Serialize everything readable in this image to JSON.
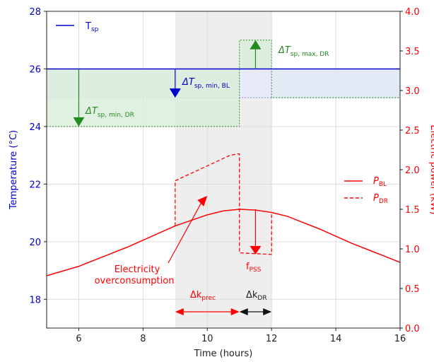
{
  "chart_data": {
    "type": "line",
    "xlabel": "Time (hours)",
    "ylabel_left": "Temperature (°C)",
    "ylabel_right": "Electric power (kW)",
    "xlim": [
      5,
      16
    ],
    "ylim_left": [
      17,
      28
    ],
    "ylim_right": [
      0.0,
      4.0
    ],
    "x_ticks": [
      "6",
      "8",
      "10",
      "12",
      "14",
      "16"
    ],
    "x_tick_values": [
      6,
      8,
      10,
      12,
      14,
      16
    ],
    "y_left_ticks": [
      "18",
      "20",
      "22",
      "24",
      "26",
      "28"
    ],
    "y_left_tick_values": [
      18,
      20,
      22,
      24,
      26,
      28
    ],
    "y_right_ticks": [
      "0.0",
      "0.5",
      "1.0",
      "1.5",
      "2.0",
      "2.5",
      "3.0",
      "3.5",
      "4.0"
    ],
    "y_right_tick_values": [
      0.0,
      0.5,
      1.0,
      1.5,
      2.0,
      2.5,
      3.0,
      3.5,
      4.0
    ],
    "grid": true,
    "colors": {
      "temperature": "#0000cc",
      "dr_band": "#228b22",
      "power": "#ff0000",
      "shade": "#eeeeee"
    },
    "shaded_region_x": [
      9,
      12
    ],
    "setpoint": {
      "label": "T",
      "label_sub": "sp",
      "value": 26,
      "x": [
        5,
        16
      ]
    },
    "band_bl": {
      "low": 25,
      "high": 26,
      "x": [
        5,
        16
      ]
    },
    "dr_profile": {
      "x": [
        5,
        11,
        11,
        11.5,
        11.5,
        12,
        12,
        16
      ],
      "y": [
        24,
        24,
        27,
        27,
        27,
        27,
        25,
        25
      ]
    },
    "power_baseline": {
      "name": "P",
      "name_sub": "BL",
      "x": [
        5,
        5.5,
        6,
        6.5,
        7,
        7.5,
        8,
        8.5,
        9,
        9.5,
        10,
        10.5,
        11,
        11.5,
        12,
        12.5,
        13,
        13.5,
        14,
        14.5,
        15,
        15.5,
        16
      ],
      "y": [
        0.66,
        0.72,
        0.78,
        0.86,
        0.94,
        1.02,
        1.11,
        1.2,
        1.29,
        1.36,
        1.43,
        1.48,
        1.5,
        1.49,
        1.46,
        1.41,
        1.33,
        1.25,
        1.16,
        1.07,
        0.99,
        0.91,
        0.83
      ]
    },
    "power_dr": {
      "name": "P",
      "name_sub": "DR",
      "x": [
        9,
        9,
        10.7,
        10.95,
        11,
        11,
        12,
        12,
        12
      ],
      "y": [
        1.29,
        1.86,
        2.18,
        2.2,
        2.2,
        0.95,
        0.93,
        1.46,
        1.46
      ]
    },
    "annotations": {
      "dt_min_bl": {
        "text": "ΔT",
        "sub": "sp, min, BL"
      },
      "dt_min_dr": {
        "text": "ΔT",
        "sub": "sp, min, DR"
      },
      "dt_max_dr": {
        "text": "ΔT",
        "sub": "sp, max, DR"
      },
      "overconsumption": [
        "Electricity",
        "overconsumption"
      ],
      "f_pss": {
        "text": "f",
        "sub": "PSS"
      },
      "dk_prec": {
        "text": "Δk",
        "sub": "prec"
      },
      "dk_dr": {
        "text": "Δk",
        "sub": "DR"
      }
    }
  }
}
